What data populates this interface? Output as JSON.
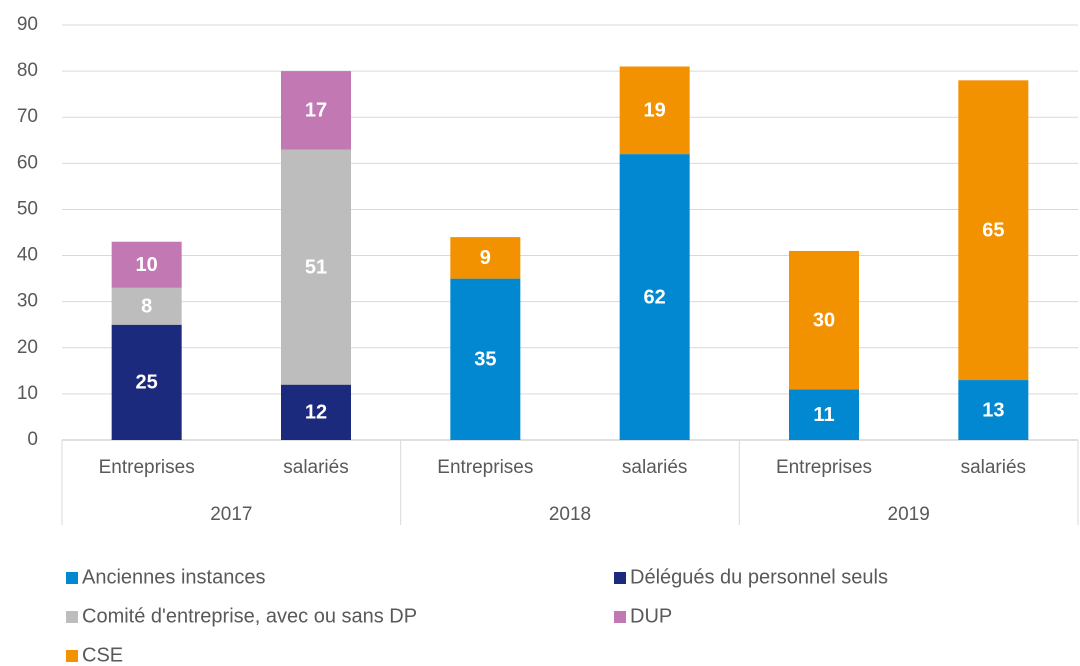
{
  "chart_data": {
    "type": "stacked_bar",
    "categories": [
      "Entreprises",
      "salariés",
      "Entreprises",
      "salariés",
      "Entreprises",
      "salariés"
    ],
    "groups": [
      "2017",
      "2018",
      "2019"
    ],
    "series": [
      {
        "name": "Anciennes instances",
        "color": "#0288d1",
        "values": [
          null,
          null,
          35,
          62,
          11,
          13
        ]
      },
      {
        "name": "Délégués du personnel seuls",
        "color": "#1b2a7c",
        "values": [
          25,
          12,
          null,
          null,
          null,
          null
        ]
      },
      {
        "name": "Comité d'entreprise, avec ou sans DP",
        "color": "#bdbdbd",
        "values": [
          8,
          51,
          null,
          null,
          null,
          null
        ]
      },
      {
        "name": "DUP",
        "color": "#c278b3",
        "values": [
          10,
          17,
          null,
          null,
          null,
          null
        ]
      },
      {
        "name": "CSE",
        "color": "#f39200",
        "values": [
          null,
          null,
          9,
          19,
          30,
          65
        ]
      }
    ],
    "ylim": [
      0,
      90
    ],
    "yticks": [
      0,
      10,
      20,
      30,
      40,
      50,
      60,
      70,
      80,
      90
    ],
    "grid": true
  }
}
